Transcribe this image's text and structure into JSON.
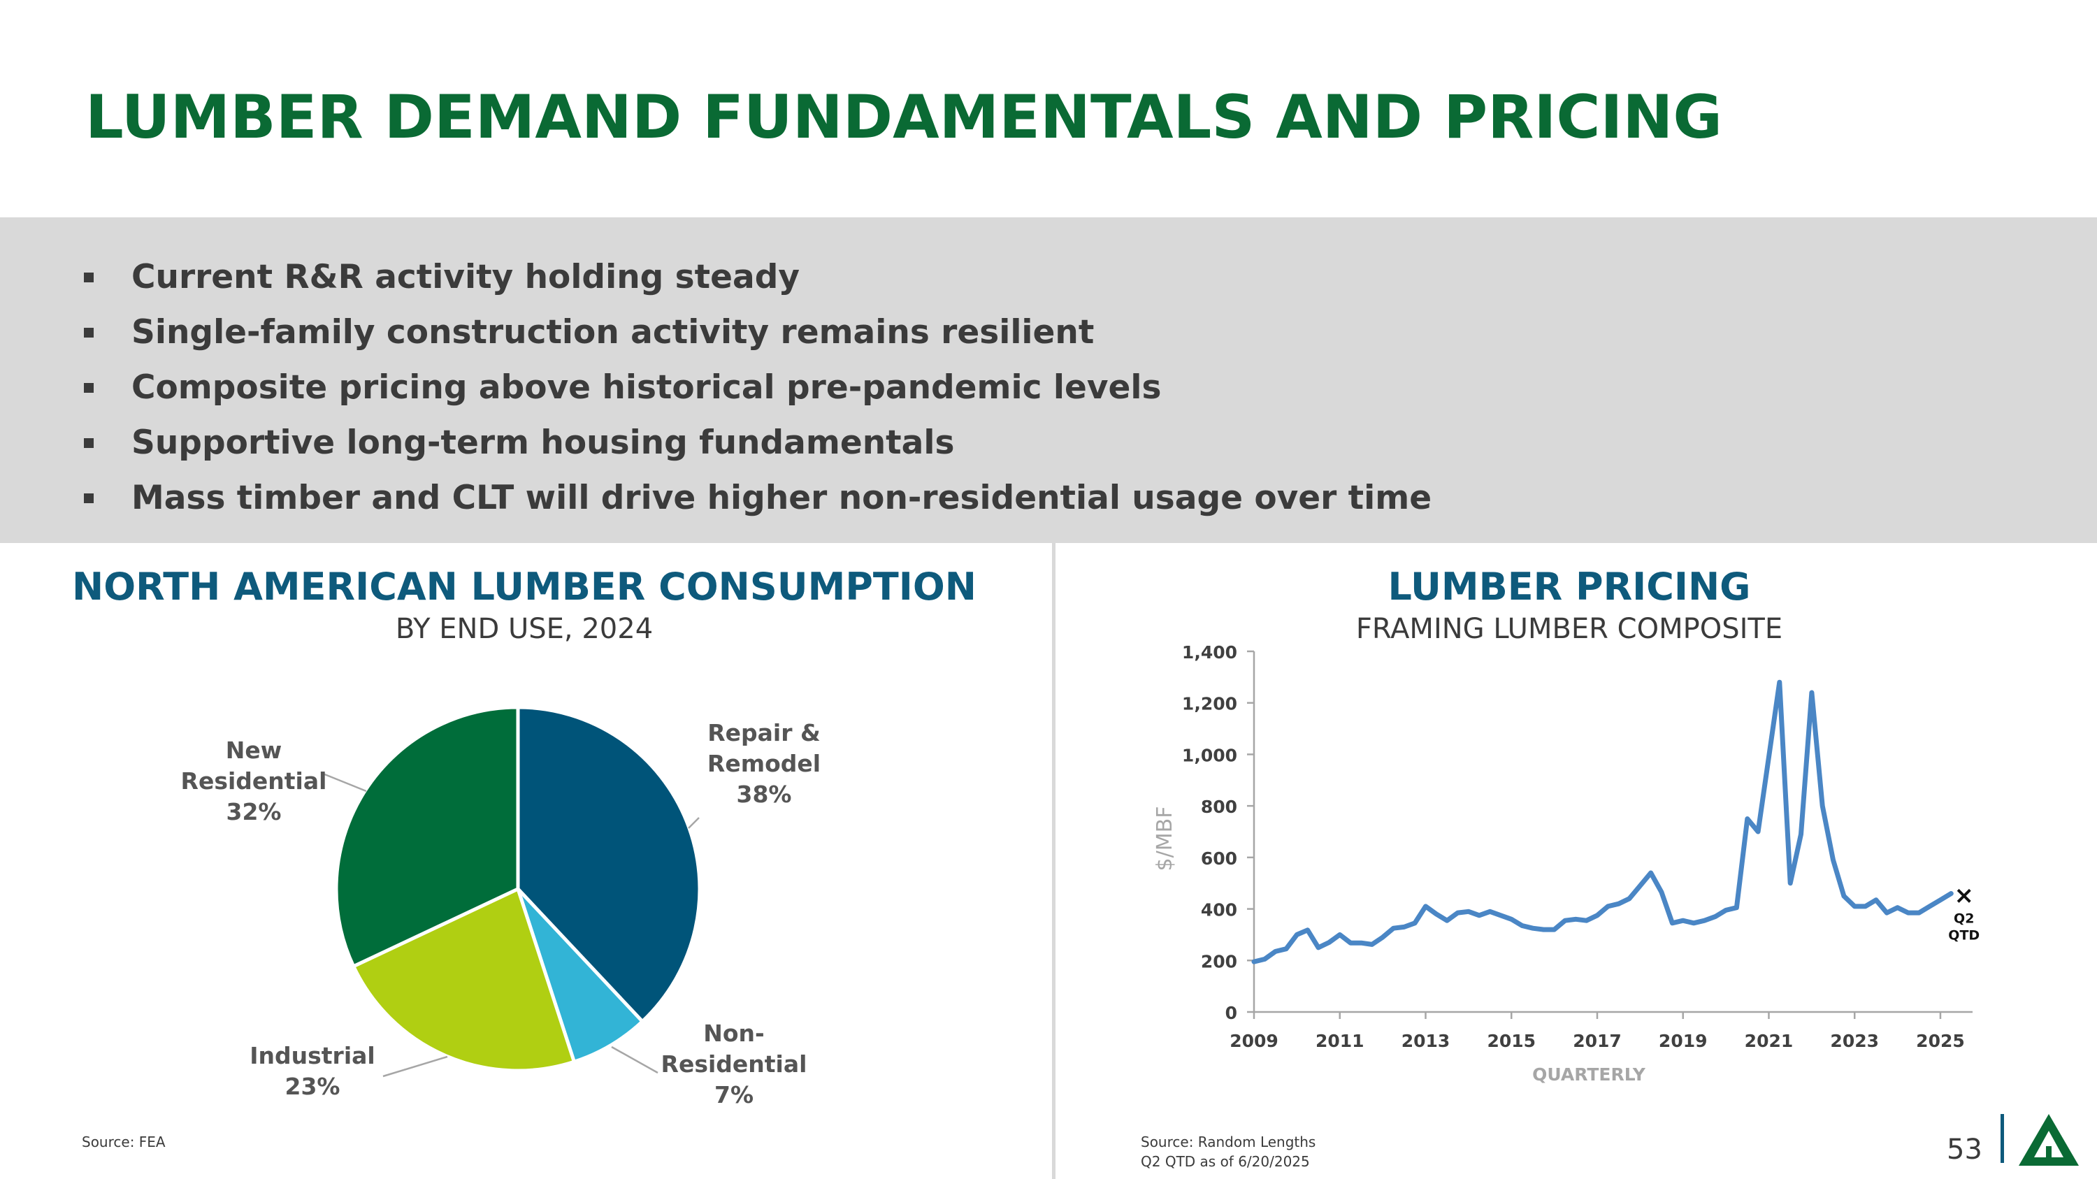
{
  "title": "LUMBER DEMAND FUNDAMENTALS AND PRICING",
  "bullets": [
    "Current R&R activity holding steady",
    "Single-family construction activity remains resilient",
    "Composite pricing above historical pre-pandemic levels",
    "Supportive long-term housing fundamentals",
    "Mass timber and CLT will drive higher non-residential usage over time"
  ],
  "left_panel": {
    "title": "NORTH AMERICAN LUMBER CONSUMPTION",
    "subtitle": "BY END USE, 2024",
    "source": "Source: FEA"
  },
  "right_panel": {
    "title": "LUMBER PRICING",
    "subtitle": "FRAMING LUMBER COMPOSITE",
    "source_line1": "Source: Random Lengths",
    "source_line2": "Q2 QTD as of 6/20/2025"
  },
  "page_number": "53",
  "chart_data": [
    {
      "type": "pie",
      "slices": [
        {
          "label_lines": [
            "Repair &",
            "Remodel",
            "38%"
          ],
          "label": "Repair & Remodel",
          "value": 38,
          "color": "#005479"
        },
        {
          "label_lines": [
            "Non-",
            "Residential",
            "7%"
          ],
          "label": "Non-Residential",
          "value": 7,
          "color": "#32b4d6"
        },
        {
          "label_lines": [
            "Industrial",
            "23%"
          ],
          "label": "Industrial",
          "value": 23,
          "color": "#b0cf12"
        },
        {
          "label_lines": [
            "New",
            "Residential",
            "32%"
          ],
          "label": "New Residential",
          "value": 32,
          "color": "#006d3a"
        }
      ]
    },
    {
      "type": "line",
      "ylabel": "$/MBF",
      "xlabel": "QUARTERLY",
      "ylim": [
        0,
        1400
      ],
      "xlim": [
        2009,
        2025.75
      ],
      "yticks": [
        0,
        200,
        400,
        600,
        800,
        1000,
        1200,
        1400
      ],
      "ytick_labels": [
        "0",
        "200",
        "400",
        "600",
        "800",
        "1,000",
        "1,200",
        "1,400"
      ],
      "xticks": [
        2009,
        2011,
        2013,
        2015,
        2017,
        2019,
        2021,
        2023,
        2025
      ],
      "xtick_labels": [
        "2009",
        "2011",
        "2013",
        "2015",
        "2017",
        "2019",
        "2021",
        "2023",
        "2025"
      ],
      "line_color": "#4a86c5",
      "series": [
        {
          "x": [
            2009.0,
            2009.25,
            2009.5,
            2009.75,
            2010.0,
            2010.25,
            2010.5,
            2010.75,
            2011.0,
            2011.25,
            2011.5,
            2011.75,
            2012.0,
            2012.25,
            2012.5,
            2012.75,
            2013.0,
            2013.25,
            2013.5,
            2013.75,
            2014.0,
            2014.25,
            2014.5,
            2014.75,
            2015.0,
            2015.25,
            2015.5,
            2015.75,
            2016.0,
            2016.25,
            2016.5,
            2016.75,
            2017.0,
            2017.25,
            2017.5,
            2017.75,
            2018.0,
            2018.25,
            2018.5,
            2018.75,
            2019.0,
            2019.25,
            2019.5,
            2019.75,
            2020.0,
            2020.25,
            2020.5,
            2020.75,
            2021.0,
            2021.25,
            2021.5,
            2021.75,
            2022.0,
            2022.25,
            2022.5,
            2022.75,
            2023.0,
            2023.25,
            2023.5,
            2023.75,
            2024.0,
            2024.25,
            2024.5,
            2024.75,
            2025.0,
            2025.25
          ],
          "y": [
            195,
            205,
            235,
            245,
            300,
            318,
            250,
            270,
            300,
            268,
            268,
            262,
            290,
            325,
            330,
            345,
            410,
            380,
            355,
            385,
            390,
            375,
            390,
            375,
            360,
            335,
            325,
            320,
            320,
            355,
            360,
            355,
            375,
            410,
            420,
            440,
            490,
            540,
            465,
            345,
            355,
            345,
            355,
            370,
            395,
            405,
            750,
            700,
            990,
            1280,
            500,
            690,
            1240,
            800,
            590,
            450,
            410,
            410,
            435,
            385,
            405,
            385,
            385,
            410,
            435,
            460
          ]
        }
      ],
      "marker": {
        "symbol": "×",
        "label_lines": [
          "Q2",
          "QTD"
        ],
        "x": 2025.42,
        "y": 460
      }
    }
  ]
}
